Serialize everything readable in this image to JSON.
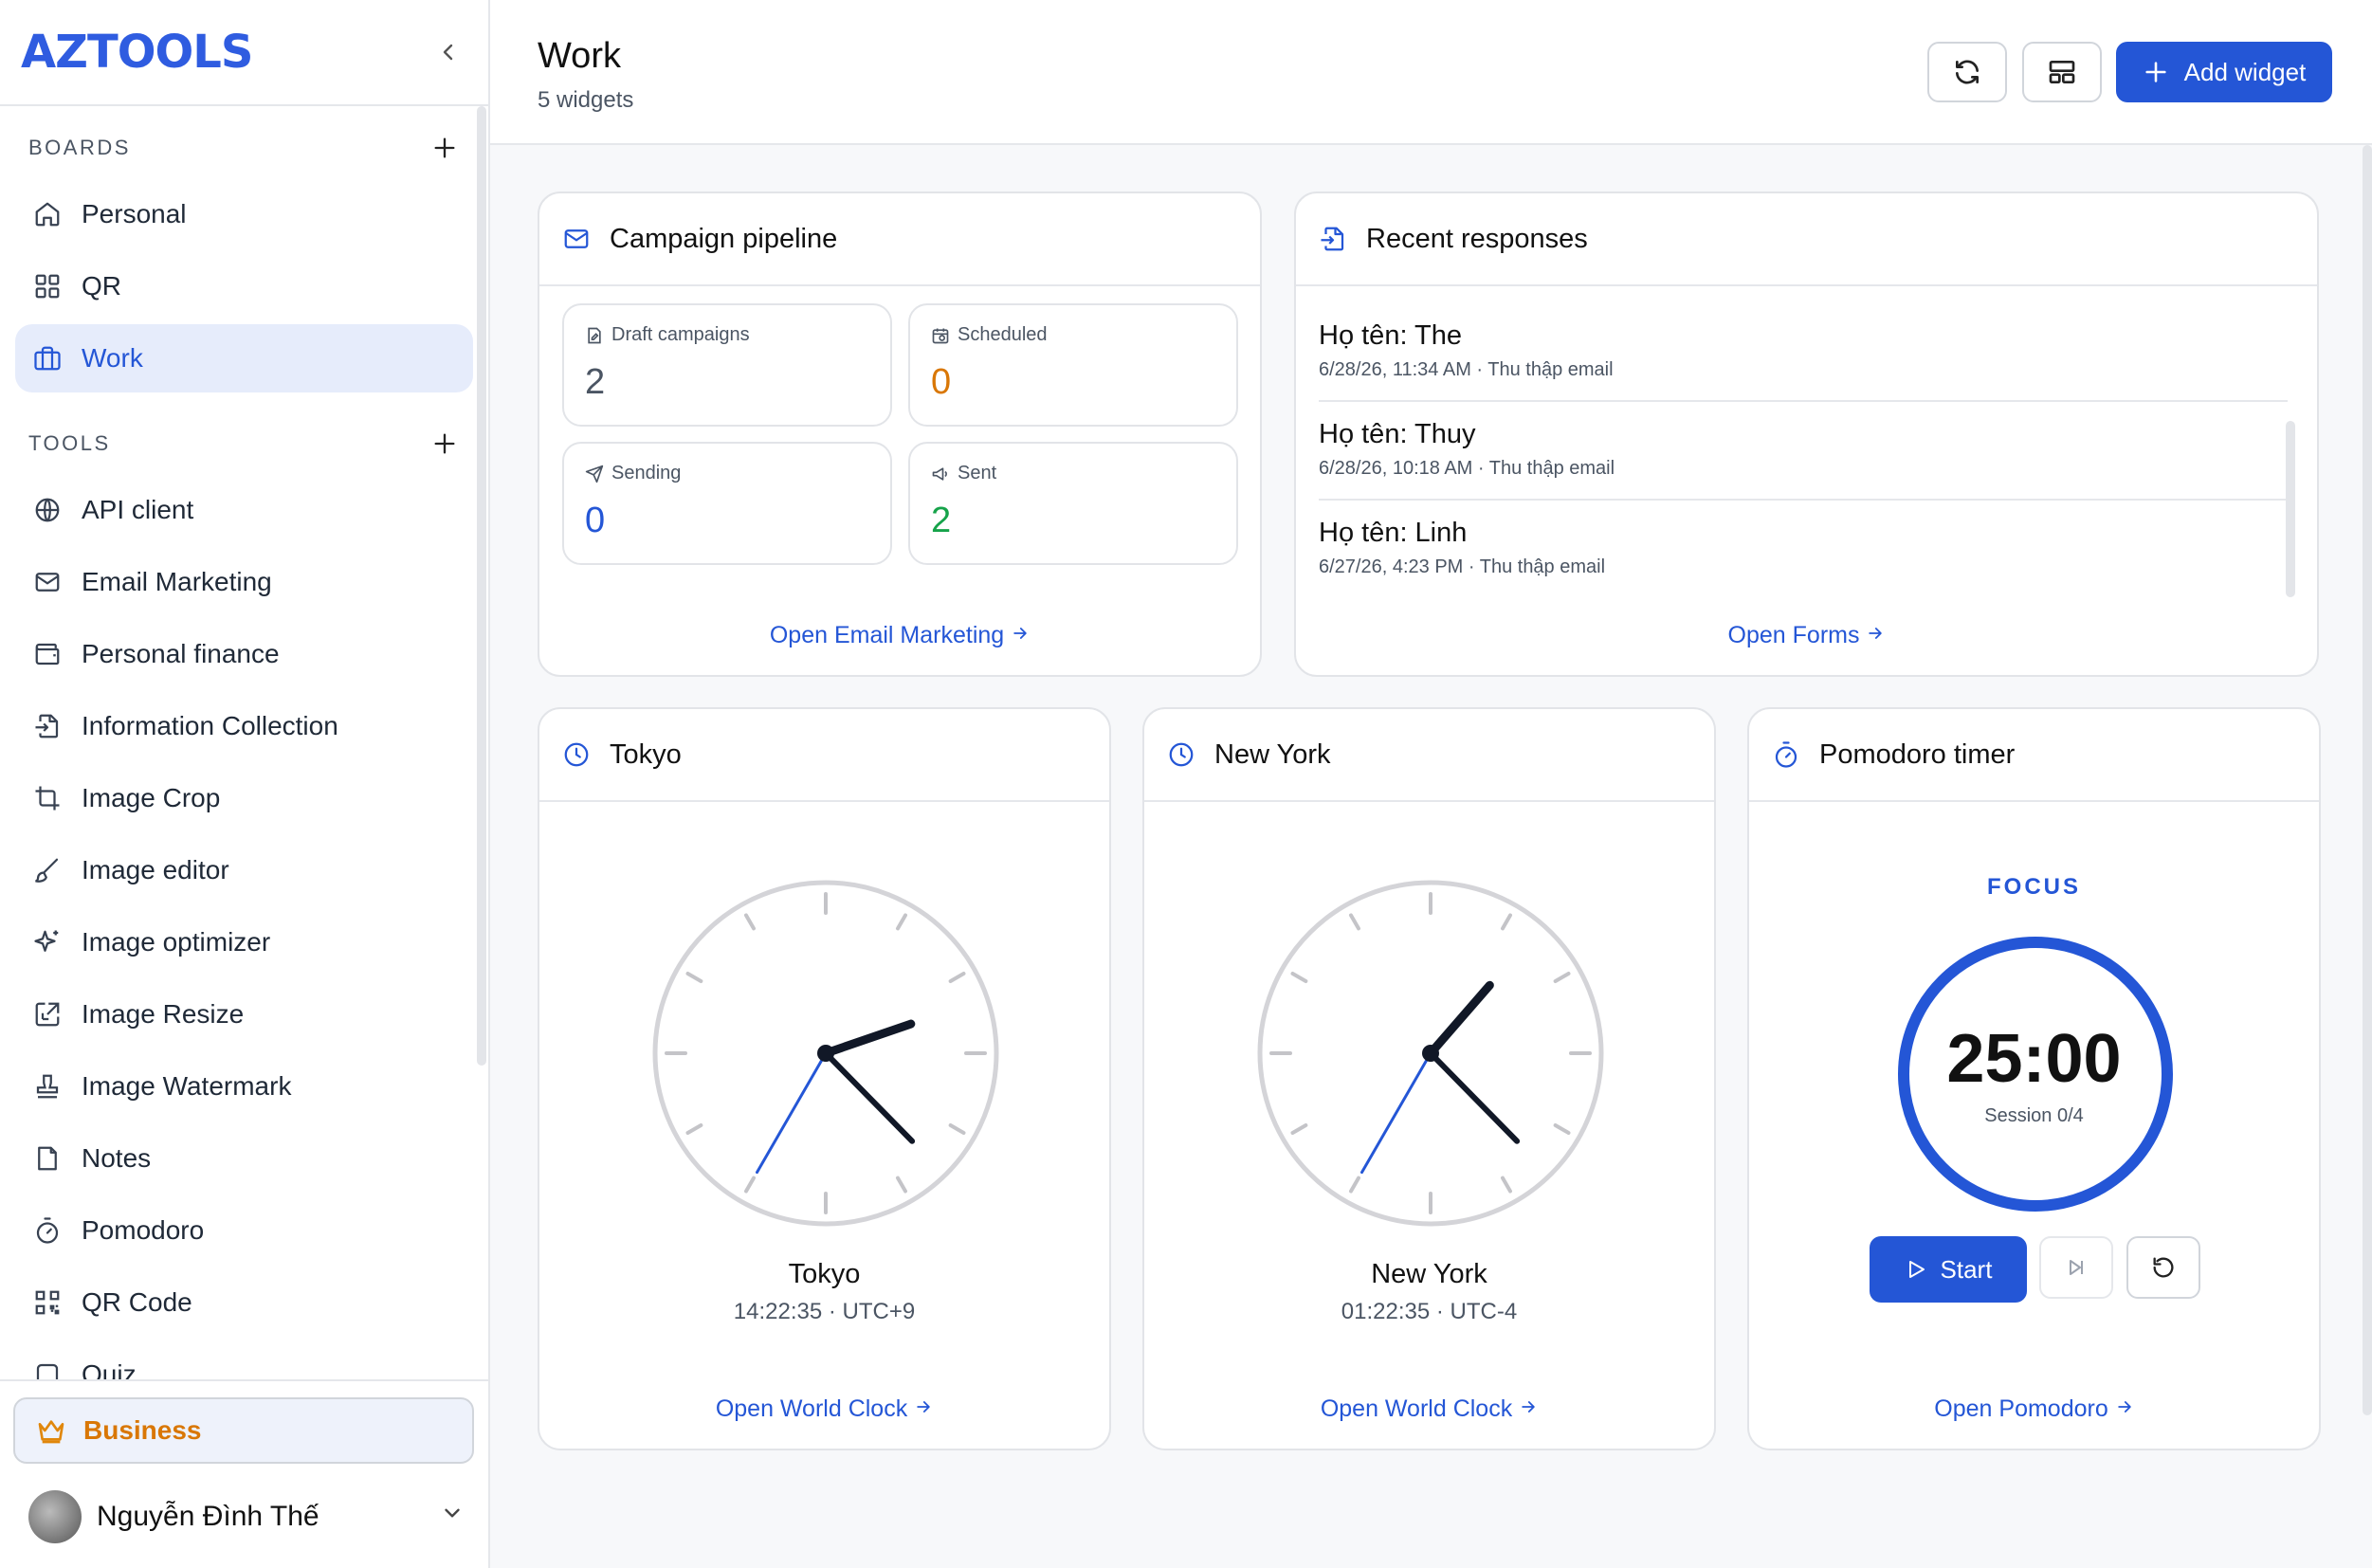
{
  "app": {
    "logo": "AZTOOLS"
  },
  "sidebar": {
    "boards_label": "BOARDS",
    "boards": [
      {
        "label": "Personal",
        "icon": "home-icon"
      },
      {
        "label": "QR",
        "icon": "grid-icon"
      },
      {
        "label": "Work",
        "icon": "briefcase-icon",
        "active": true
      }
    ],
    "tools_label": "TOOLS",
    "tools": [
      {
        "label": "API client",
        "icon": "globe-icon"
      },
      {
        "label": "Email Marketing",
        "icon": "mail-icon"
      },
      {
        "label": "Personal finance",
        "icon": "wallet-icon"
      },
      {
        "label": "Information Collection",
        "icon": "file-input-icon"
      },
      {
        "label": "Image Crop",
        "icon": "crop-icon"
      },
      {
        "label": "Image editor",
        "icon": "brush-icon"
      },
      {
        "label": "Image optimizer",
        "icon": "sparkles-icon"
      },
      {
        "label": "Image Resize",
        "icon": "resize-icon"
      },
      {
        "label": "Image Watermark",
        "icon": "stamp-icon"
      },
      {
        "label": "Notes",
        "icon": "note-icon"
      },
      {
        "label": "Pomodoro",
        "icon": "timer-icon"
      },
      {
        "label": "QR Code",
        "icon": "qr-code-icon"
      },
      {
        "label": "Quiz",
        "icon": "quiz-icon"
      }
    ],
    "business_label": "Business",
    "user_name": "Nguyễn Đình Thế"
  },
  "header": {
    "title": "Work",
    "subtitle": "5 widgets",
    "add_widget_label": "Add widget"
  },
  "campaign": {
    "title": "Campaign pipeline",
    "stats": [
      {
        "label": "Draft campaigns",
        "value": "2",
        "color": "#4b5563"
      },
      {
        "label": "Scheduled",
        "value": "0",
        "color": "#d97706"
      },
      {
        "label": "Sending",
        "value": "0",
        "color": "#2456d6"
      },
      {
        "label": "Sent",
        "value": "2",
        "color": "#16a34a"
      }
    ],
    "link": "Open Email Marketing"
  },
  "responses": {
    "title": "Recent responses",
    "items": [
      {
        "title": "Họ tên: The",
        "meta": "6/28/26, 11:34 AM · Thu thập email"
      },
      {
        "title": "Họ tên: Thuy",
        "meta": "6/28/26, 10:18 AM · Thu thập email"
      },
      {
        "title": "Họ tên: Linh",
        "meta": "6/27/26, 4:23 PM · Thu thập email"
      }
    ],
    "link": "Open Forms"
  },
  "clocks": [
    {
      "title": "Tokyo",
      "city": "Tokyo",
      "time": "14:22:35 · UTC+9",
      "hour": 14,
      "minute": 22,
      "second": 35,
      "link": "Open World Clock"
    },
    {
      "title": "New York",
      "city": "New York",
      "time": "01:22:35 · UTC-4",
      "hour": 1,
      "minute": 22,
      "second": 35,
      "link": "Open World Clock"
    }
  ],
  "pomodoro": {
    "title": "Pomodoro timer",
    "mode": "FOCUS",
    "time": "25:00",
    "session": "Session 0/4",
    "start_label": "Start",
    "link": "Open Pomodoro"
  }
}
